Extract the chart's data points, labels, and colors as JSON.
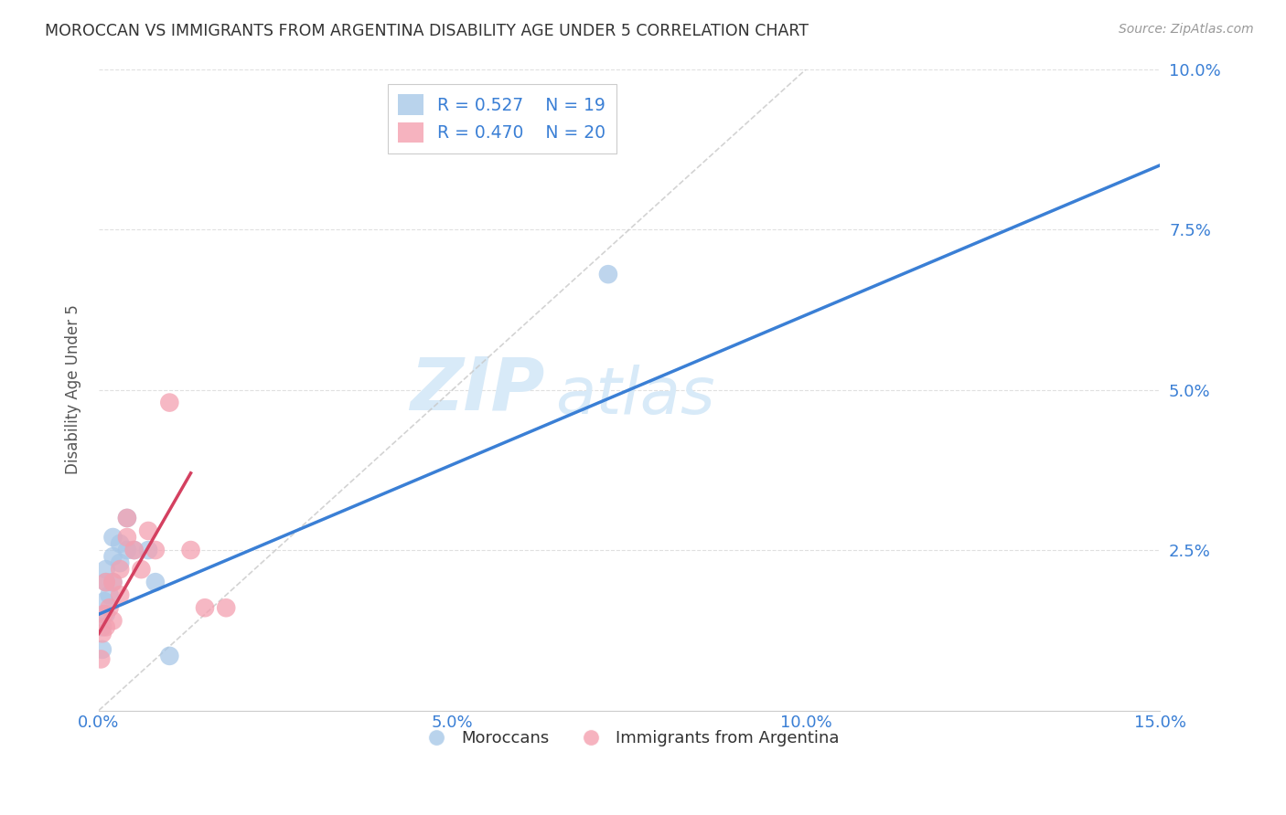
{
  "title": "MOROCCAN VS IMMIGRANTS FROM ARGENTINA DISABILITY AGE UNDER 5 CORRELATION CHART",
  "source": "Source: ZipAtlas.com",
  "ylabel": "Disability Age Under 5",
  "xlim": [
    0.0,
    0.15
  ],
  "ylim": [
    0.0,
    0.1
  ],
  "xticks": [
    0.0,
    0.05,
    0.1,
    0.15
  ],
  "yticks": [
    0.025,
    0.05,
    0.075,
    0.1
  ],
  "legend1_r": "0.527",
  "legend1_n": "19",
  "legend2_r": "0.470",
  "legend2_n": "20",
  "blue_color": "#a8c8e8",
  "pink_color": "#f4a0b0",
  "line_blue": "#3a7fd5",
  "line_pink": "#d44060",
  "diag_color": "#c8c8c8",
  "moroccan_x": [
    0.0005,
    0.0005,
    0.0008,
    0.001,
    0.001,
    0.001,
    0.0015,
    0.002,
    0.002,
    0.002,
    0.003,
    0.003,
    0.004,
    0.004,
    0.005,
    0.007,
    0.008,
    0.072,
    0.01
  ],
  "moroccan_y": [
    0.0095,
    0.013,
    0.017,
    0.015,
    0.02,
    0.022,
    0.018,
    0.02,
    0.024,
    0.027,
    0.023,
    0.026,
    0.025,
    0.03,
    0.025,
    0.025,
    0.02,
    0.068,
    0.0085
  ],
  "argentina_x": [
    0.0003,
    0.0005,
    0.0007,
    0.001,
    0.001,
    0.0015,
    0.002,
    0.002,
    0.003,
    0.003,
    0.004,
    0.004,
    0.005,
    0.006,
    0.007,
    0.008,
    0.01,
    0.013,
    0.015,
    0.018
  ],
  "argentina_y": [
    0.008,
    0.012,
    0.015,
    0.013,
    0.02,
    0.016,
    0.014,
    0.02,
    0.018,
    0.022,
    0.027,
    0.03,
    0.025,
    0.022,
    0.028,
    0.025,
    0.048,
    0.025,
    0.016,
    0.016
  ],
  "background_color": "#ffffff",
  "grid_color": "#e0e0e0",
  "watermark_zip": "ZIP",
  "watermark_atlas": "atlas",
  "watermark_color": "#d8eaf8"
}
